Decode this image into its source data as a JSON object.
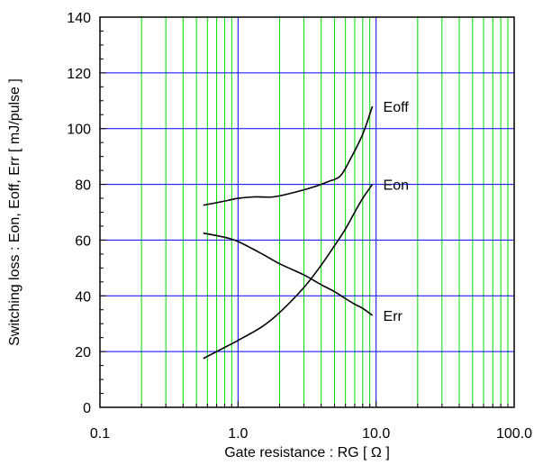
{
  "chart_data": {
    "type": "line",
    "xlabel": "Gate resistance : RG [ Ω ]",
    "ylabel": "Switching loss : Eon, Eoff, Err [ mJ/pulse ]",
    "xscale": "log",
    "xlim": [
      0.1,
      100
    ],
    "ylim": [
      0,
      140
    ],
    "xticks": [
      0.1,
      1,
      10,
      100
    ],
    "xtick_labels": [
      "0.1",
      "1.0",
      "10.0",
      "100.0"
    ],
    "yticks": [
      0,
      20,
      40,
      60,
      80,
      100,
      120,
      140
    ],
    "ytick_labels": [
      "0",
      "20",
      "40",
      "60",
      "80",
      "100",
      "120",
      "140"
    ],
    "grid": true,
    "major_grid_color": "#0000ff",
    "minor_grid_color": "#00dd00",
    "series": [
      {
        "name": "Eoff",
        "color": "#000000",
        "x": [
          0.56,
          0.8,
          1.0,
          1.3,
          1.8,
          2.5,
          3.5,
          4.5,
          5.5,
          6.5,
          8.0,
          9.4
        ],
        "y": [
          72.5,
          74,
          75,
          75.5,
          75.5,
          77,
          79,
          81,
          83,
          89,
          98,
          108
        ]
      },
      {
        "name": "Eon",
        "color": "#000000",
        "x": [
          0.56,
          0.8,
          1.0,
          1.5,
          2.0,
          3.0,
          4.0,
          5.0,
          6.0,
          7.0,
          8.0,
          9.4
        ],
        "y": [
          17.5,
          21.5,
          24,
          29,
          34,
          43,
          51,
          58,
          64,
          70,
          75,
          80
        ]
      },
      {
        "name": "Err",
        "color": "#000000",
        "x": [
          0.56,
          0.8,
          1.0,
          1.5,
          2.0,
          3.0,
          4.0,
          5.0,
          6.0,
          7.0,
          8.0,
          9.4
        ],
        "y": [
          62.5,
          61,
          59.5,
          55,
          51.5,
          47.5,
          44,
          41.5,
          39,
          37,
          35.5,
          33
        ]
      }
    ]
  }
}
